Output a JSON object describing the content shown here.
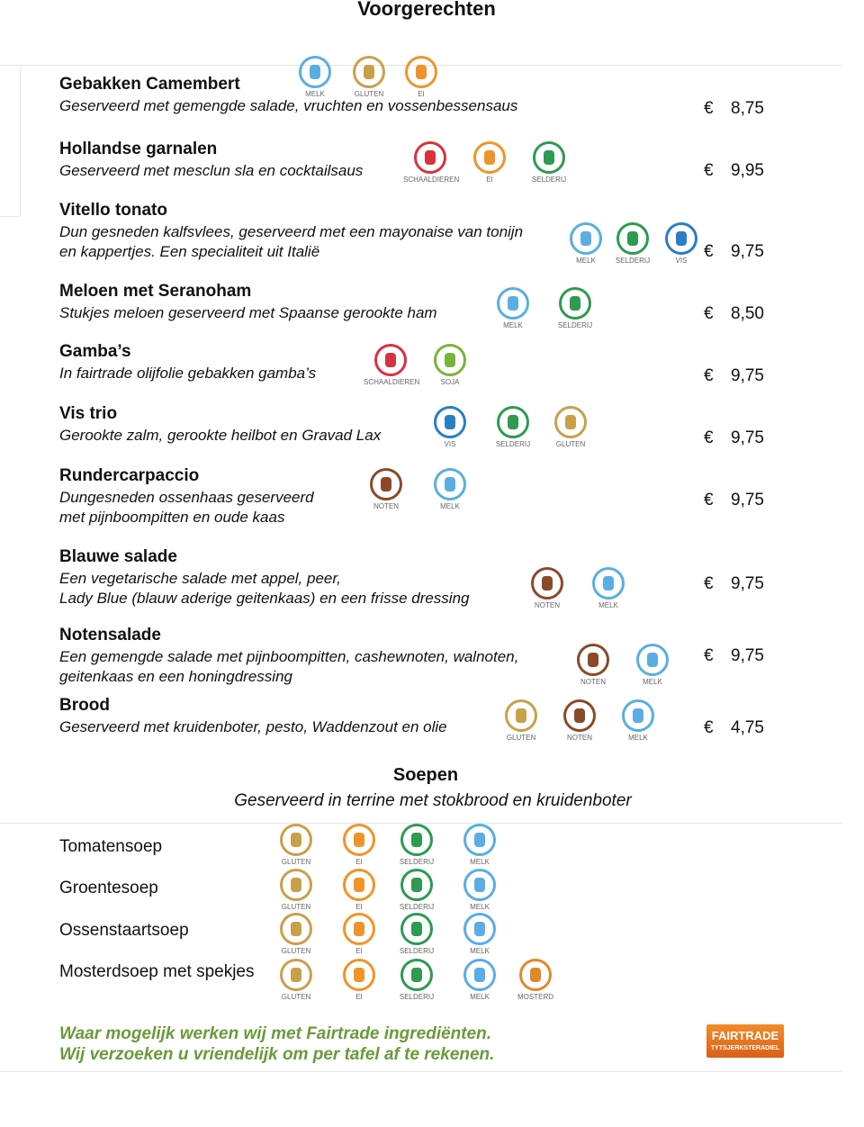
{
  "title": "Voorgerechten",
  "currency": "€",
  "starters": [
    {
      "name": "Gebakken Camembert",
      "description": [
        "Geserveerd met gemengde salade, vruchten en vossenbessensaus"
      ],
      "price": "8,75",
      "allergens": [
        {
          "label": "MELK",
          "color": "#5aaee3"
        },
        {
          "label": "GLUTEN",
          "color": "#c9a04a"
        },
        {
          "label": "EI",
          "color": "#f0942a"
        }
      ]
    },
    {
      "name": "Hollandse garnalen",
      "description": [
        "Geserveerd met mesclun sla en cocktailsaus"
      ],
      "price": "9,95",
      "allergens": [
        {
          "label": "SCHAALDIEREN",
          "color": "#d8323f"
        },
        {
          "label": "EI",
          "color": "#f0942a"
        },
        {
          "label": "SELDERIJ",
          "color": "#2e9a52"
        }
      ]
    },
    {
      "name": "Vitello tonato",
      "description": [
        "Dun gesneden kalfsvlees, geserveerd met een mayonaise van tonijn",
        "en kappertjes. Een specialiteit uit Italië"
      ],
      "price": "9,75",
      "allergens": [
        {
          "label": "MELK",
          "color": "#5aaee3"
        },
        {
          "label": "SELDERIJ",
          "color": "#2e9a52"
        },
        {
          "label": "VIS",
          "color": "#2a7fc4"
        }
      ]
    },
    {
      "name": "Meloen met Seranoham",
      "description": [
        "Stukjes meloen geserveerd met Spaanse gerookte ham"
      ],
      "price": "8,50",
      "allergens": [
        {
          "label": "MELK",
          "color": "#5aaee3"
        },
        {
          "label": "SELDERIJ",
          "color": "#2e9a52"
        }
      ]
    },
    {
      "name": "Gamba’s",
      "description": [
        "In fairtrade olijfolie gebakken gamba’s"
      ],
      "price": "9,75",
      "allergens": [
        {
          "label": "SCHAALDIEREN",
          "color": "#d8323f"
        },
        {
          "label": "SOJA",
          "color": "#7ab43a"
        }
      ]
    },
    {
      "name": "Vis trio",
      "description": [
        "Gerookte zalm, gerookte heilbot en Gravad Lax"
      ],
      "price": "9,75",
      "allergens": [
        {
          "label": "VIS",
          "color": "#2a7fc4"
        },
        {
          "label": "SELDERIJ",
          "color": "#2e9a52"
        },
        {
          "label": "GLUTEN",
          "color": "#c9a04a"
        }
      ]
    },
    {
      "name": "Rundercarpaccio",
      "description": [
        "Dungesneden ossenhaas geserveerd",
        "met pijnboompitten en oude kaas"
      ],
      "price": "9,75",
      "allergens": [
        {
          "label": "NOTEN",
          "color": "#8a4a2a"
        },
        {
          "label": "MELK",
          "color": "#5aaee3"
        }
      ]
    },
    {
      "name": "Blauwe salade",
      "description": [
        "Een vegetarische salade met appel, peer,",
        "Lady Blue (blauw aderige geitenkaas)  en een frisse dressing"
      ],
      "price": "9,75",
      "allergens": [
        {
          "label": "NOTEN",
          "color": "#8a4a2a"
        },
        {
          "label": "MELK",
          "color": "#5aaee3"
        }
      ]
    },
    {
      "name": "Notensalade",
      "description": [
        "Een gemengde salade met pijnboompitten, cashewnoten, walnoten,",
        "geitenkaas en een honingdressing"
      ],
      "price": "9,75",
      "allergens": [
        {
          "label": "NOTEN",
          "color": "#8a4a2a"
        },
        {
          "label": "MELK",
          "color": "#5aaee3"
        }
      ]
    },
    {
      "name": "Brood",
      "description": [
        "Geserveerd met kruidenboter, pesto, Waddenzout en olie"
      ],
      "price": "4,75",
      "allergens": [
        {
          "label": "GLUTEN",
          "color": "#c9a04a"
        },
        {
          "label": "NOTEN",
          "color": "#8a4a2a"
        },
        {
          "label": "MELK",
          "color": "#5aaee3"
        }
      ]
    }
  ],
  "soups_title": "Soepen",
  "soups_subtitle": "Geserveerd in terrine met stokbrood en kruidenboter",
  "soups": [
    {
      "name": "Tomatensoep",
      "allergens": [
        {
          "label": "GLUTEN",
          "color": "#c9a04a"
        },
        {
          "label": "EI",
          "color": "#f0942a"
        },
        {
          "label": "SELDERIJ",
          "color": "#2e9a52"
        },
        {
          "label": "MELK",
          "color": "#5aaee3"
        }
      ]
    },
    {
      "name": "Groentesoep",
      "allergens": [
        {
          "label": "GLUTEN",
          "color": "#c9a04a"
        },
        {
          "label": "EI",
          "color": "#f0942a"
        },
        {
          "label": "SELDERIJ",
          "color": "#2e9a52"
        },
        {
          "label": "MELK",
          "color": "#5aaee3"
        }
      ]
    },
    {
      "name": "Ossenstaartsoep",
      "allergens": [
        {
          "label": "GLUTEN",
          "color": "#c9a04a"
        },
        {
          "label": "EI",
          "color": "#f0942a"
        },
        {
          "label": "SELDERIJ",
          "color": "#2e9a52"
        },
        {
          "label": "MELK",
          "color": "#5aaee3"
        }
      ]
    },
    {
      "name": "Mosterdsoep met spekjes",
      "allergens": [
        {
          "label": "GLUTEN",
          "color": "#c9a04a"
        },
        {
          "label": "EI",
          "color": "#f0942a"
        },
        {
          "label": "SELDERIJ",
          "color": "#2e9a52"
        },
        {
          "label": "MELK",
          "color": "#5aaee3"
        },
        {
          "label": "MOSTERD",
          "color": "#e0892a"
        }
      ]
    }
  ],
  "footer": [
    "Waar mogelijk werken wij met Fairtrade ingrediënten.",
    "Wij verzoeken u vriendelijk om per tafel af te rekenen."
  ],
  "logo": [
    "FAIRTRADE",
    "TYTSJERKSTERADIEL"
  ]
}
